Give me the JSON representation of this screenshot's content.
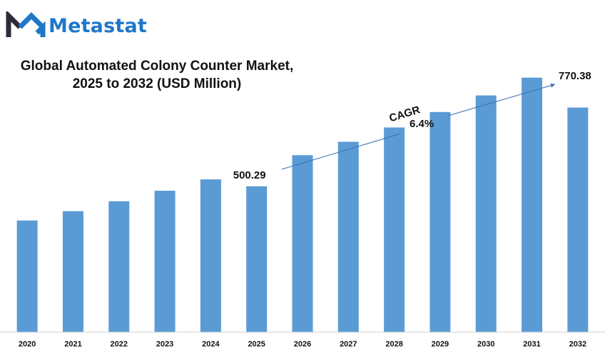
{
  "brand": {
    "name": "Metastat",
    "mark_color": "#1f77c9",
    "mark_dark": "#2b2b3a"
  },
  "title_line1": "Global Automated Colony Counter Market,",
  "title_line2": "2025 to 2032 (USD Million)",
  "annotation": {
    "cagr_label": "CAGR",
    "cagr_value": "6.4%"
  },
  "chart_data": {
    "type": "bar",
    "categories": [
      "2020",
      "2021",
      "2022",
      "2023",
      "2024",
      "2025",
      "2026",
      "2027",
      "2028",
      "2029",
      "2030",
      "2031",
      "2032"
    ],
    "values": [
      383,
      415,
      449,
      485,
      524,
      500.29,
      607,
      653,
      702,
      755,
      812,
      873,
      770.38
    ],
    "bar_color": "#5b9bd5",
    "data_labels": {
      "5": "500.29",
      "12": "770.38"
    },
    "title": "Global Automated Colony Counter Market, 2025 to 2032 (USD Million)",
    "xlabel": "",
    "ylabel": "",
    "ylim": [
      0,
      980
    ],
    "grid": false,
    "legend": "none"
  }
}
